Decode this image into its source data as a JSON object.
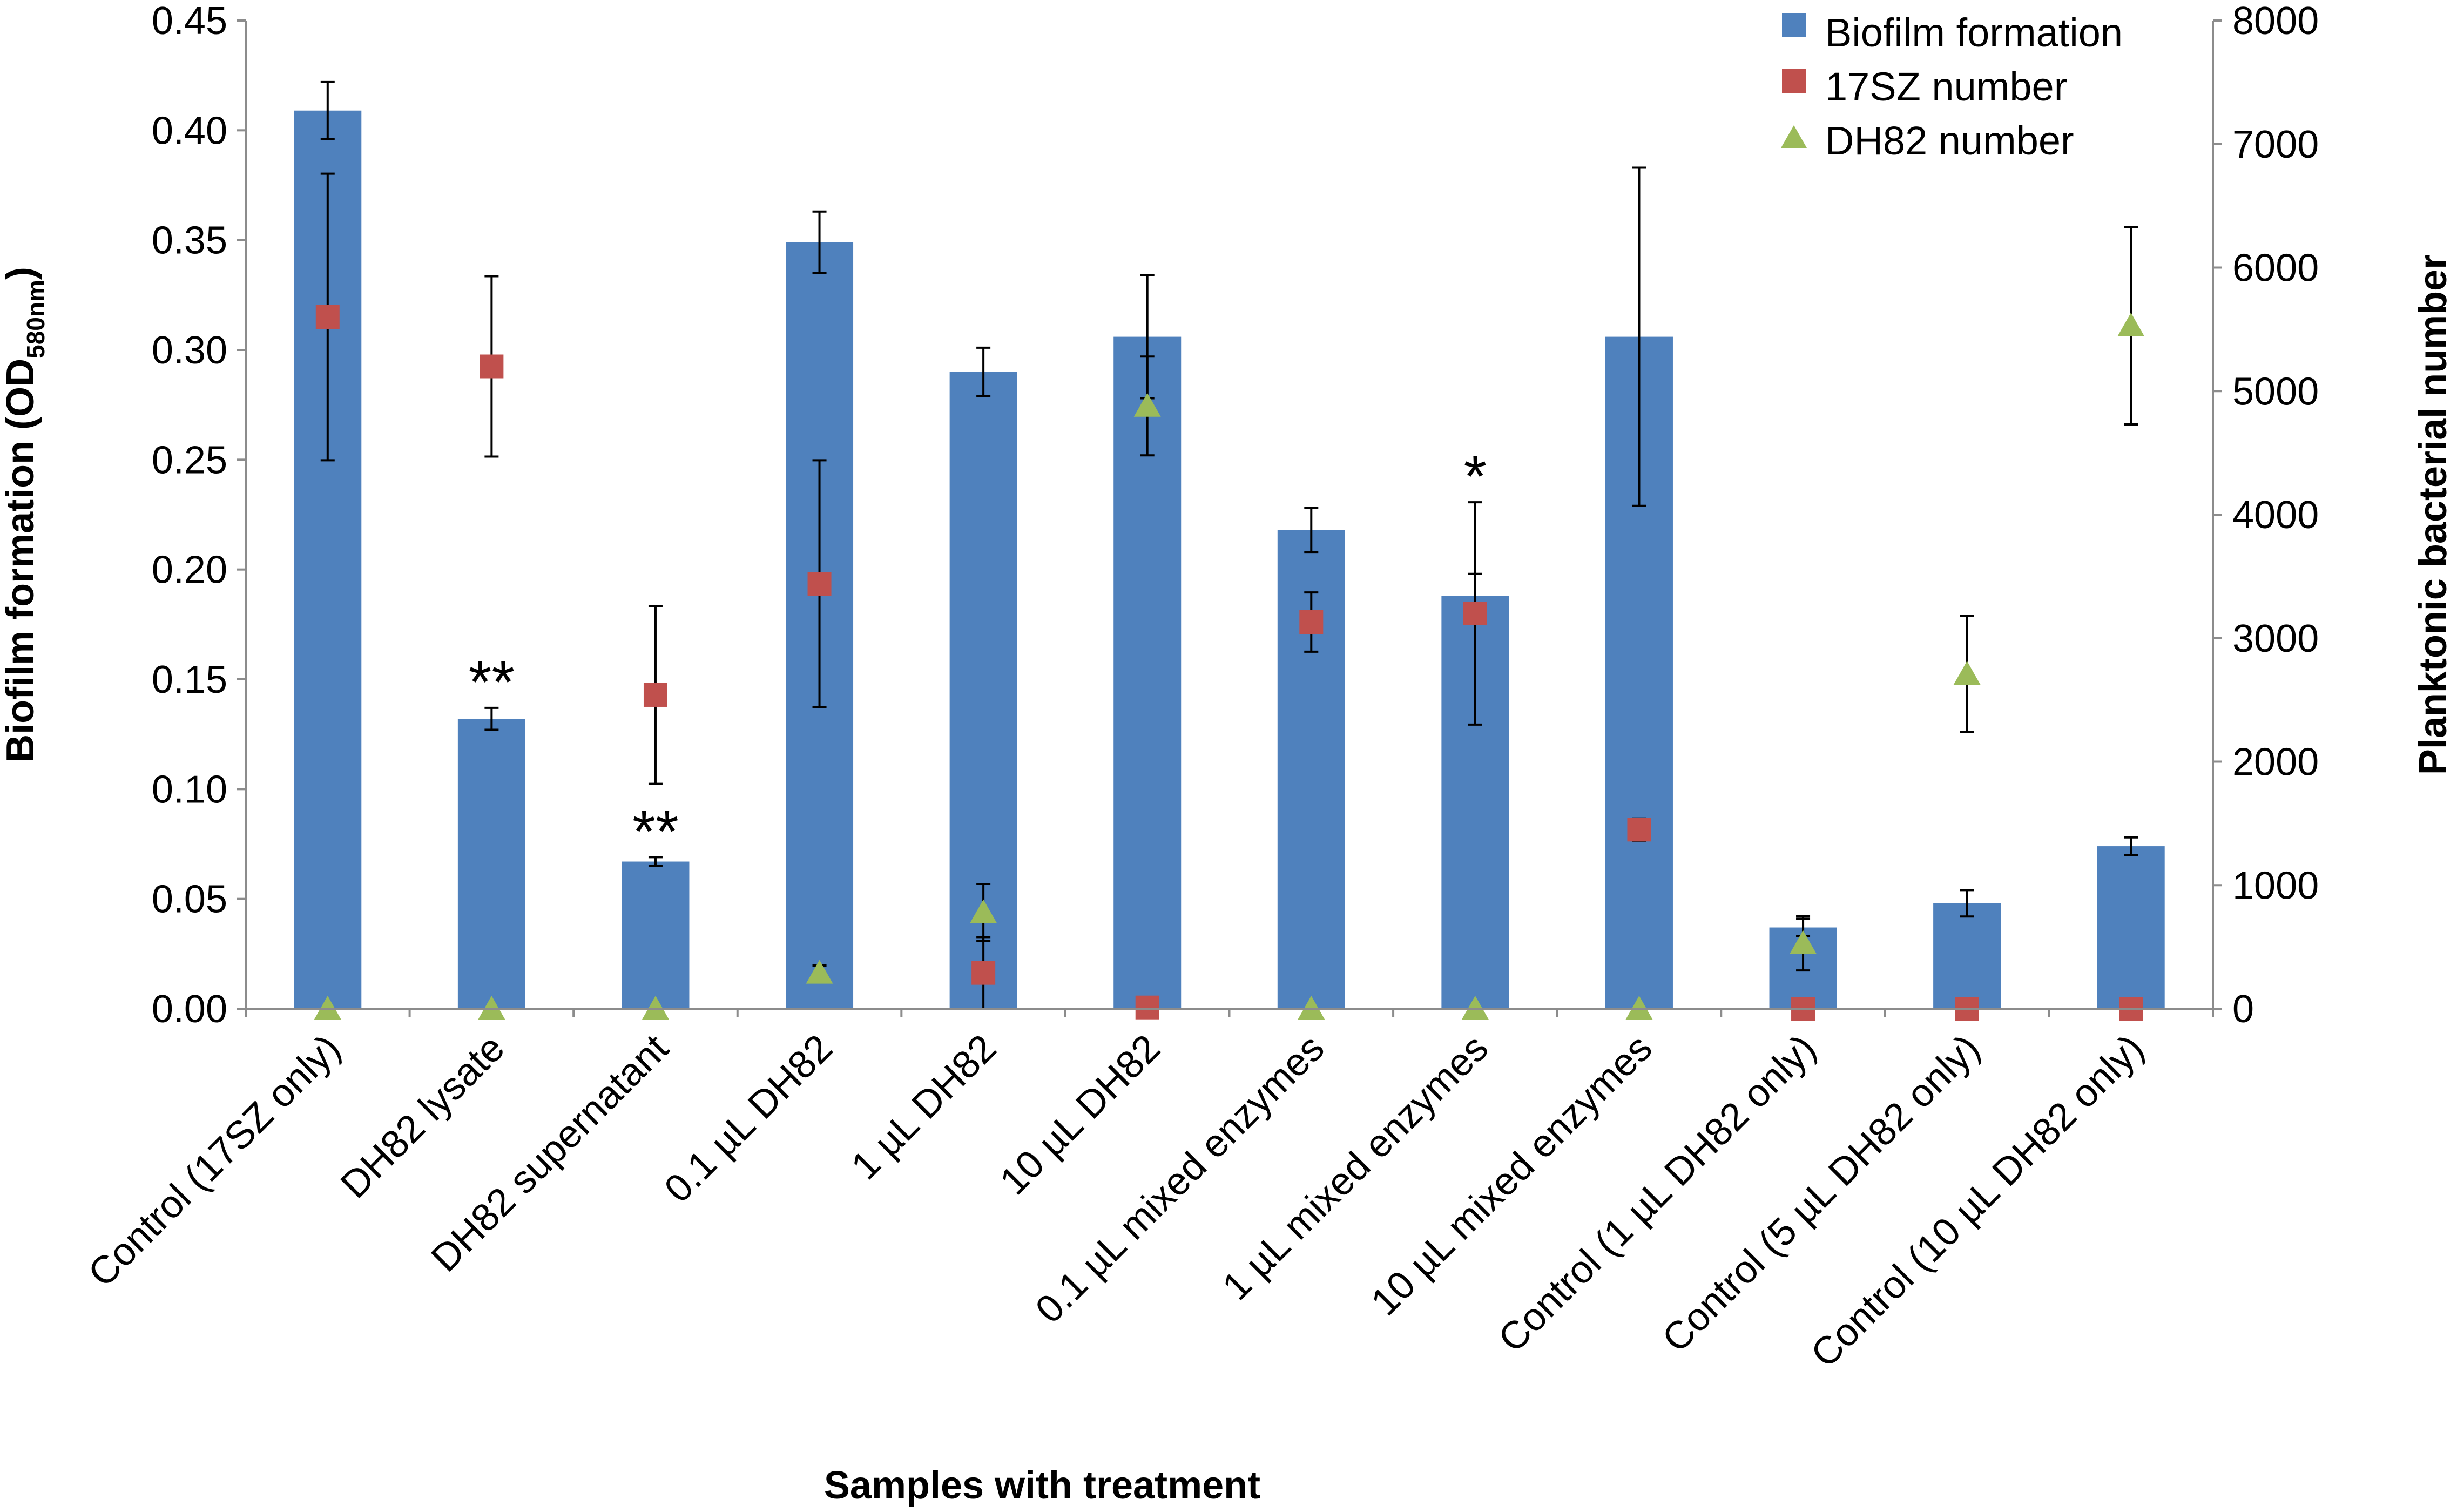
{
  "chart_data": {
    "type": "bar",
    "title": "",
    "xlabel": "Samples with treatment",
    "ylabel": "Biofilm formation (OD580nm)",
    "ylabel_main": "Biofilm formation (OD",
    "ylabel_sub": "580nm",
    "ylabel_close": ")",
    "y2label": "Planktonic bacterial number",
    "ylim": [
      0,
      0.45
    ],
    "y2lim": [
      0,
      8000
    ],
    "yticks": [
      "0.00",
      "0.05",
      "0.10",
      "0.15",
      "0.20",
      "0.25",
      "0.30",
      "0.35",
      "0.40",
      "0.45"
    ],
    "y2ticks": [
      "0",
      "1000",
      "2000",
      "3000",
      "4000",
      "5000",
      "6000",
      "7000",
      "8000"
    ],
    "legend_position": "top-right",
    "categories": [
      "Control (17SZ only)",
      "DH82 lysate",
      "DH82 supernatant",
      "0.1 µL DH82",
      "1 µL DH82",
      "10 µL DH82",
      "0.1 µL mixed enzymes",
      "1 µL mixed enzymes",
      "10 µL mixed enzymes",
      "Control (1 µL DH82 only)",
      "Control (5 µL DH82 only)",
      "Control (10 µL DH82 only)"
    ],
    "series": [
      {
        "name": "Biofilm formation",
        "kind": "bar",
        "axis": "left",
        "color": "#4f81bd",
        "values": [
          0.409,
          0.132,
          0.067,
          0.349,
          0.29,
          0.306,
          0.218,
          0.188,
          0.306,
          0.037,
          0.048,
          0.074
        ],
        "errors": [
          0.013,
          0.005,
          0.002,
          0.014,
          0.011,
          0.028,
          0.01,
          0.01,
          0.077,
          0.004,
          0.006,
          0.004
        ]
      },
      {
        "name": "17SZ number",
        "kind": "square",
        "axis": "right",
        "color": "#c0504d",
        "values": [
          5600,
          5200,
          2540,
          3440,
          290,
          10,
          3130,
          3200,
          1450,
          0,
          0,
          0
        ],
        "errors": [
          1160,
          730,
          720,
          1000,
          290,
          0,
          240,
          900,
          90,
          0,
          0,
          0
        ]
      },
      {
        "name": "DH82 number",
        "kind": "triangle",
        "axis": "right",
        "color": "#9bbb59",
        "values": [
          0,
          0,
          0,
          290,
          780,
          4880,
          0,
          0,
          0,
          530,
          2710,
          5530
        ],
        "errors": [
          0,
          0,
          0,
          60,
          230,
          400,
          0,
          0,
          0,
          220,
          470,
          800
        ]
      }
    ],
    "annotations": [
      {
        "category_index": 1,
        "text": "**"
      },
      {
        "category_index": 2,
        "text": "**"
      },
      {
        "category_index": 7,
        "text": "*"
      }
    ]
  }
}
